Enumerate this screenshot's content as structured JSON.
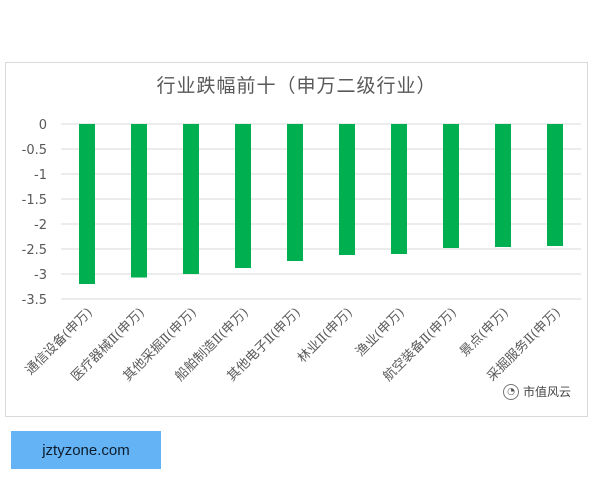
{
  "chart_data": {
    "type": "bar",
    "title": "行业跌幅前十（申万二级行业）",
    "categories": [
      "通信设备(申万)",
      "医疗器械Ⅱ(申万)",
      "其他采掘Ⅱ(申万)",
      "船舶制造Ⅱ(申万)",
      "其他电子Ⅱ(申万)",
      "林业Ⅱ(申万)",
      "渔业(申万)",
      "航空装备Ⅱ(申万)",
      "景点(申万)",
      "采掘服务Ⅱ(申万)"
    ],
    "values": [
      -3.2,
      -3.07,
      -3.0,
      -2.88,
      -2.74,
      -2.62,
      -2.6,
      -2.48,
      -2.46,
      -2.44
    ],
    "ylim": [
      -3.5,
      0
    ],
    "yticks": [
      "0",
      "-0.5",
      "-1",
      "-1.5",
      "-2",
      "-2.5",
      "-3",
      "-3.5"
    ],
    "grid": true,
    "bar_color": "#00b050"
  },
  "watermark": {
    "icon": "chat-bubble-icon",
    "text": "市值风云"
  },
  "site_badge": {
    "text": "jztyzone.com"
  }
}
